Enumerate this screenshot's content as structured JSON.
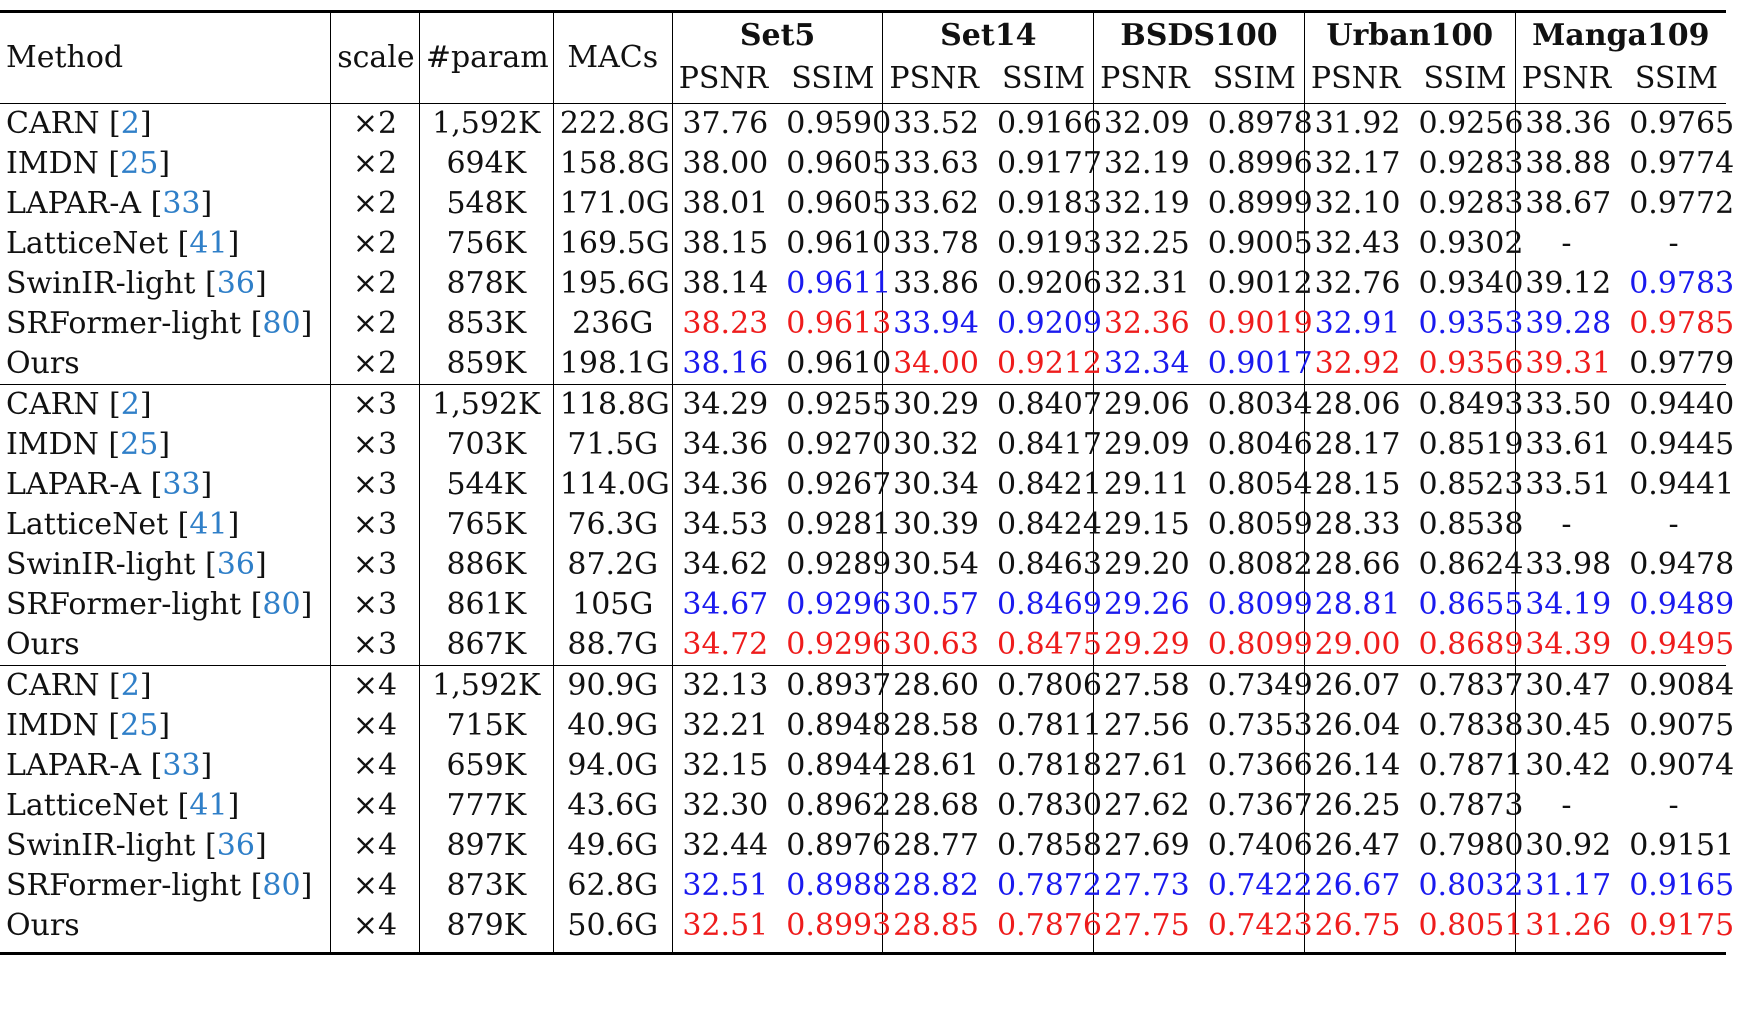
{
  "header": {
    "method": "Method",
    "scale": "scale",
    "params": "#param",
    "macs": "MACs",
    "psnr": "PSNR",
    "ssim": "SSIM",
    "datasets": [
      "Set5",
      "Set14",
      "BSDS100",
      "Urban100",
      "Manga109"
    ]
  },
  "colors": {
    "best": "#ee1c1c",
    "second": "#1a1aee",
    "citation": "#2f7fc8"
  },
  "groups": [
    {
      "rows": [
        {
          "name": "CARN",
          "ref": "2",
          "scale": "×2",
          "params": "1,592K",
          "macs": "222.8G",
          "values": [
            "37.76",
            "0.9590",
            "33.52",
            "0.9166",
            "32.09",
            "0.8978",
            "31.92",
            "0.9256",
            "38.36",
            "0.9765"
          ],
          "hl": [
            "",
            "",
            "",
            "",
            "",
            "",
            "",
            "",
            "",
            ""
          ]
        },
        {
          "name": "IMDN",
          "ref": "25",
          "scale": "×2",
          "params": "694K",
          "macs": "158.8G",
          "values": [
            "38.00",
            "0.9605",
            "33.63",
            "0.9177",
            "32.19",
            "0.8996",
            "32.17",
            "0.9283",
            "38.88",
            "0.9774"
          ],
          "hl": [
            "",
            "",
            "",
            "",
            "",
            "",
            "",
            "",
            "",
            ""
          ]
        },
        {
          "name": "LAPAR-A",
          "ref": "33",
          "scale": "×2",
          "params": "548K",
          "macs": "171.0G",
          "values": [
            "38.01",
            "0.9605",
            "33.62",
            "0.9183",
            "32.19",
            "0.8999",
            "32.10",
            "0.9283",
            "38.67",
            "0.9772"
          ],
          "hl": [
            "",
            "",
            "",
            "",
            "",
            "",
            "",
            "",
            "",
            ""
          ]
        },
        {
          "name": "LatticeNet",
          "ref": "41",
          "scale": "×2",
          "params": "756K",
          "macs": "169.5G",
          "values": [
            "38.15",
            "0.9610",
            "33.78",
            "0.9193",
            "32.25",
            "0.9005",
            "32.43",
            "0.9302",
            "-",
            "-"
          ],
          "hl": [
            "",
            "",
            "",
            "",
            "",
            "",
            "",
            "",
            "",
            ""
          ]
        },
        {
          "name": "SwinIR-light",
          "ref": "36",
          "scale": "×2",
          "params": "878K",
          "macs": "195.6G",
          "values": [
            "38.14",
            "0.9611",
            "33.86",
            "0.9206",
            "32.31",
            "0.9012",
            "32.76",
            "0.9340",
            "39.12",
            "0.9783"
          ],
          "hl": [
            "",
            "blue",
            "",
            "",
            "",
            "",
            "",
            "",
            "",
            "blue"
          ]
        },
        {
          "name": "SRFormer-light",
          "ref": "80",
          "scale": "×2",
          "params": "853K",
          "macs": "236G",
          "values": [
            "38.23",
            "0.9613",
            "33.94",
            "0.9209",
            "32.36",
            "0.9019",
            "32.91",
            "0.9353",
            "39.28",
            "0.9785"
          ],
          "hl": [
            "red",
            "red",
            "blue",
            "blue",
            "red",
            "red",
            "blue",
            "blue",
            "blue",
            "red"
          ]
        },
        {
          "name": "Ours",
          "ref": "",
          "scale": "×2",
          "params": "859K",
          "macs": "198.1G",
          "values": [
            "38.16",
            "0.9610",
            "34.00",
            "0.9212",
            "32.34",
            "0.9017",
            "32.92",
            "0.9356",
            "39.31",
            "0.9779"
          ],
          "hl": [
            "blue",
            "",
            "red",
            "red",
            "blue",
            "blue",
            "red",
            "red",
            "red",
            ""
          ]
        }
      ]
    },
    {
      "rows": [
        {
          "name": "CARN",
          "ref": "2",
          "scale": "×3",
          "params": "1,592K",
          "macs": "118.8G",
          "values": [
            "34.29",
            "0.9255",
            "30.29",
            "0.8407",
            "29.06",
            "0.8034",
            "28.06",
            "0.8493",
            "33.50",
            "0.9440"
          ],
          "hl": [
            "",
            "",
            "",
            "",
            "",
            "",
            "",
            "",
            "",
            ""
          ]
        },
        {
          "name": "IMDN",
          "ref": "25",
          "scale": "×3",
          "params": "703K",
          "macs": "71.5G",
          "values": [
            "34.36",
            "0.9270",
            "30.32",
            "0.8417",
            "29.09",
            "0.8046",
            "28.17",
            "0.8519",
            "33.61",
            "0.9445"
          ],
          "hl": [
            "",
            "",
            "",
            "",
            "",
            "",
            "",
            "",
            "",
            ""
          ]
        },
        {
          "name": "LAPAR-A",
          "ref": "33",
          "scale": "×3",
          "params": "544K",
          "macs": "114.0G",
          "values": [
            "34.36",
            "0.9267",
            "30.34",
            "0.8421",
            "29.11",
            "0.8054",
            "28.15",
            "0.8523",
            "33.51",
            "0.9441"
          ],
          "hl": [
            "",
            "",
            "",
            "",
            "",
            "",
            "",
            "",
            "",
            ""
          ]
        },
        {
          "name": "LatticeNet",
          "ref": "41",
          "scale": "×3",
          "params": "765K",
          "macs": "76.3G",
          "values": [
            "34.53",
            "0.9281",
            "30.39",
            "0.8424",
            "29.15",
            "0.8059",
            "28.33",
            "0.8538",
            "-",
            "-"
          ],
          "hl": [
            "",
            "",
            "",
            "",
            "",
            "",
            "",
            "",
            "",
            ""
          ]
        },
        {
          "name": "SwinIR-light",
          "ref": "36",
          "scale": "×3",
          "params": "886K",
          "macs": "87.2G",
          "values": [
            "34.62",
            "0.9289",
            "30.54",
            "0.8463",
            "29.20",
            "0.8082",
            "28.66",
            "0.8624",
            "33.98",
            "0.9478"
          ],
          "hl": [
            "",
            "",
            "",
            "",
            "",
            "",
            "",
            "",
            "",
            ""
          ]
        },
        {
          "name": "SRFormer-light",
          "ref": "80",
          "scale": "×3",
          "params": "861K",
          "macs": "105G",
          "values": [
            "34.67",
            "0.9296",
            "30.57",
            "0.8469",
            "29.26",
            "0.8099",
            "28.81",
            "0.8655",
            "34.19",
            "0.9489"
          ],
          "hl": [
            "blue",
            "blue",
            "blue",
            "blue",
            "blue",
            "blue",
            "blue",
            "blue",
            "blue",
            "blue"
          ]
        },
        {
          "name": "Ours",
          "ref": "",
          "scale": "×3",
          "params": "867K",
          "macs": "88.7G",
          "values": [
            "34.72",
            "0.9296",
            "30.63",
            "0.8475",
            "29.29",
            "0.8099",
            "29.00",
            "0.8689",
            "34.39",
            "0.9495"
          ],
          "hl": [
            "red",
            "red",
            "red",
            "red",
            "red",
            "red",
            "red",
            "red",
            "red",
            "red"
          ]
        }
      ]
    },
    {
      "rows": [
        {
          "name": "CARN",
          "ref": "2",
          "scale": "×4",
          "params": "1,592K",
          "macs": "90.9G",
          "values": [
            "32.13",
            "0.8937",
            "28.60",
            "0.7806",
            "27.58",
            "0.7349",
            "26.07",
            "0.7837",
            "30.47",
            "0.9084"
          ],
          "hl": [
            "",
            "",
            "",
            "",
            "",
            "",
            "",
            "",
            "",
            ""
          ]
        },
        {
          "name": "IMDN",
          "ref": "25",
          "scale": "×4",
          "params": "715K",
          "macs": "40.9G",
          "values": [
            "32.21",
            "0.8948",
            "28.58",
            "0.7811",
            "27.56",
            "0.7353",
            "26.04",
            "0.7838",
            "30.45",
            "0.9075"
          ],
          "hl": [
            "",
            "",
            "",
            "",
            "",
            "",
            "",
            "",
            "",
            ""
          ]
        },
        {
          "name": "LAPAR-A",
          "ref": "33",
          "scale": "×4",
          "params": "659K",
          "macs": "94.0G",
          "values": [
            "32.15",
            "0.8944",
            "28.61",
            "0.7818",
            "27.61",
            "0.7366",
            "26.14",
            "0.7871",
            "30.42",
            "0.9074"
          ],
          "hl": [
            "",
            "",
            "",
            "",
            "",
            "",
            "",
            "",
            "",
            ""
          ]
        },
        {
          "name": "LatticeNet",
          "ref": "41",
          "scale": "×4",
          "params": "777K",
          "macs": "43.6G",
          "values": [
            "32.30",
            "0.8962",
            "28.68",
            "0.7830",
            "27.62",
            "0.7367",
            "26.25",
            "0.7873",
            "-",
            "-"
          ],
          "hl": [
            "",
            "",
            "",
            "",
            "",
            "",
            "",
            "",
            "",
            ""
          ]
        },
        {
          "name": "SwinIR-light",
          "ref": "36",
          "scale": "×4",
          "params": "897K",
          "macs": "49.6G",
          "values": [
            "32.44",
            "0.8976",
            "28.77",
            "0.7858",
            "27.69",
            "0.7406",
            "26.47",
            "0.7980",
            "30.92",
            "0.9151"
          ],
          "hl": [
            "",
            "",
            "",
            "",
            "",
            "",
            "",
            "",
            "",
            ""
          ]
        },
        {
          "name": "SRFormer-light",
          "ref": "80",
          "scale": "×4",
          "params": "873K",
          "macs": "62.8G",
          "values": [
            "32.51",
            "0.8988",
            "28.82",
            "0.7872",
            "27.73",
            "0.7422",
            "26.67",
            "0.8032",
            "31.17",
            "0.9165"
          ],
          "hl": [
            "blue",
            "blue",
            "blue",
            "blue",
            "blue",
            "blue",
            "blue",
            "blue",
            "blue",
            "blue"
          ]
        },
        {
          "name": "Ours",
          "ref": "",
          "scale": "×4",
          "params": "879K",
          "macs": "50.6G",
          "values": [
            "32.51",
            "0.8993",
            "28.85",
            "0.7876",
            "27.75",
            "0.7423",
            "26.75",
            "0.8051",
            "31.26",
            "0.9175"
          ],
          "hl": [
            "red",
            "red",
            "red",
            "red",
            "red",
            "red",
            "red",
            "red",
            "red",
            "red"
          ]
        }
      ]
    }
  ]
}
